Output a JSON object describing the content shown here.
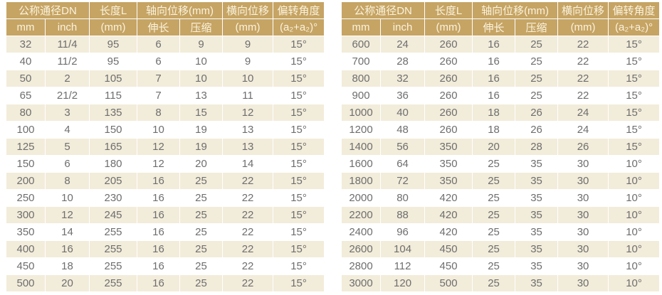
{
  "colors": {
    "header_bg": "#C6A464",
    "header_text": "#FAF3DE",
    "row_alt_bg": "#F2ECDA",
    "row_bg": "#FFFFFF",
    "cell_text": "#6E6E6E"
  },
  "header": {
    "dn": "公称通径DN",
    "dn_mm": "mm",
    "dn_inch": "inch",
    "length_line1": "长度L",
    "length_line2": "(mm)",
    "axial": "轴向位移(mm)",
    "axial_ext": "伸长",
    "axial_comp": "压缩",
    "lateral_line1": "横向位移",
    "lateral_line2": "(mm)",
    "angle_line1": "偏转角度",
    "angle_line2": "(a₂+a₂)°"
  },
  "tables": [
    {
      "rows": [
        [
          "32",
          "11/4",
          "95",
          "6",
          "9",
          "9",
          "15°"
        ],
        [
          "40",
          "11/2",
          "95",
          "6",
          "10",
          "9",
          "15°"
        ],
        [
          "50",
          "2",
          "105",
          "7",
          "10",
          "10",
          "15°"
        ],
        [
          "65",
          "21/2",
          "115",
          "7",
          "13",
          "11",
          "15°"
        ],
        [
          "80",
          "3",
          "135",
          "8",
          "15",
          "12",
          "15°"
        ],
        [
          "100",
          "4",
          "150",
          "10",
          "19",
          "13",
          "15°"
        ],
        [
          "125",
          "5",
          "165",
          "12",
          "19",
          "13",
          "15°"
        ],
        [
          "150",
          "6",
          "180",
          "12",
          "20",
          "14",
          "15°"
        ],
        [
          "200",
          "8",
          "205",
          "16",
          "25",
          "22",
          "15°"
        ],
        [
          "250",
          "10",
          "230",
          "16",
          "25",
          "22",
          "15°"
        ],
        [
          "300",
          "12",
          "245",
          "16",
          "25",
          "22",
          "15°"
        ],
        [
          "350",
          "14",
          "255",
          "16",
          "25",
          "22",
          "15°"
        ],
        [
          "400",
          "16",
          "255",
          "16",
          "25",
          "22",
          "15°"
        ],
        [
          "450",
          "18",
          "255",
          "16",
          "25",
          "22",
          "15°"
        ],
        [
          "500",
          "20",
          "255",
          "16",
          "25",
          "22",
          "15°"
        ]
      ]
    },
    {
      "rows": [
        [
          "600",
          "24",
          "260",
          "16",
          "25",
          "22",
          "15°"
        ],
        [
          "700",
          "28",
          "260",
          "16",
          "25",
          "22",
          "15°"
        ],
        [
          "800",
          "32",
          "260",
          "16",
          "25",
          "22",
          "15°"
        ],
        [
          "900",
          "36",
          "260",
          "16",
          "25",
          "22",
          "15°"
        ],
        [
          "1000",
          "40",
          "260",
          "18",
          "26",
          "24",
          "15°"
        ],
        [
          "1200",
          "48",
          "260",
          "18",
          "26",
          "24",
          "15°"
        ],
        [
          "1400",
          "56",
          "350",
          "20",
          "28",
          "26",
          "15°"
        ],
        [
          "1600",
          "64",
          "350",
          "25",
          "35",
          "30",
          "10°"
        ],
        [
          "1800",
          "72",
          "350",
          "25",
          "35",
          "30",
          "10°"
        ],
        [
          "2000",
          "80",
          "420",
          "25",
          "35",
          "30",
          "10°"
        ],
        [
          "2200",
          "88",
          "420",
          "25",
          "35",
          "30",
          "10°"
        ],
        [
          "2400",
          "96",
          "420",
          "25",
          "35",
          "30",
          "10°"
        ],
        [
          "2600",
          "104",
          "450",
          "25",
          "35",
          "30",
          "10°"
        ],
        [
          "2800",
          "112",
          "450",
          "25",
          "35",
          "30",
          "10°"
        ],
        [
          "3000",
          "120",
          "500",
          "25",
          "35",
          "30",
          "10°"
        ]
      ]
    }
  ]
}
